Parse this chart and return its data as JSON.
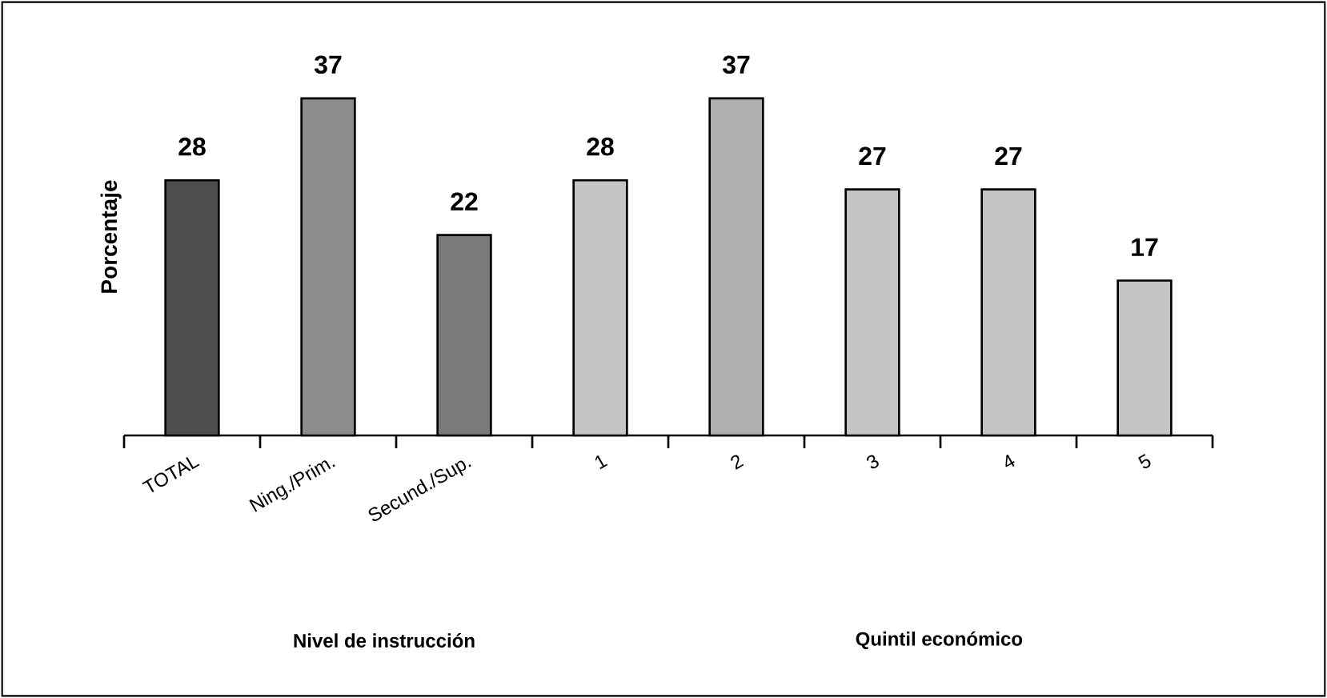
{
  "chart_data": {
    "type": "bar",
    "ylabel": "Porcentaje",
    "categories": [
      "TOTAL",
      "Ning./Prim.",
      "Secund./Sup.",
      "1",
      "2",
      "3",
      "4",
      "5"
    ],
    "values": [
      28,
      37,
      22,
      28,
      37,
      27,
      27,
      17
    ],
    "colors": [
      "#4d4d4d",
      "#8c8c8c",
      "#7a7a7a",
      "#c4c4c4",
      "#b0b0b0",
      "#c4c4c4",
      "#c4c4c4",
      "#c4c4c4"
    ],
    "data_labels": true,
    "annotations": [
      "Nivel de instrucción",
      "Quintil económico"
    ]
  }
}
